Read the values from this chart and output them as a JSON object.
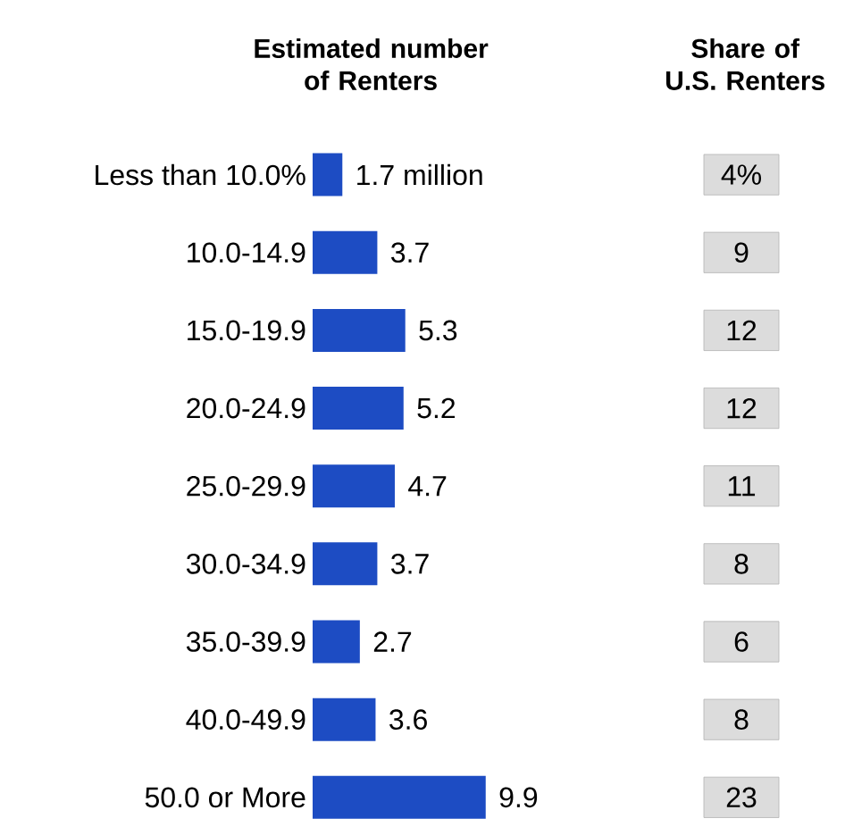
{
  "chart_data": [
    {
      "type": "bar",
      "orientation": "horizontal",
      "title": "Estimated number of Renters",
      "categories": [
        "Less than 10.0%",
        "10.0-14.9",
        "15.0-19.9",
        "20.0-24.9",
        "25.0-29.9",
        "30.0-34.9",
        "35.0-39.9",
        "40.0-49.9",
        "50.0 or More"
      ],
      "values": [
        1.7,
        3.7,
        5.3,
        5.2,
        4.7,
        3.7,
        2.7,
        3.6,
        9.9
      ],
      "value_labels": [
        "1.7 million",
        "3.7",
        "5.3",
        "5.2",
        "4.7",
        "3.7",
        "2.7",
        "3.6",
        "9.9"
      ],
      "color": "#1d4cc3"
    },
    {
      "type": "other",
      "title": "Share of U.S. Renters",
      "values": [
        4,
        9,
        12,
        12,
        11,
        8,
        6,
        8,
        23
      ],
      "value_labels": [
        "4%",
        "9",
        "12",
        "12",
        "11",
        "8",
        "6",
        "8",
        "23"
      ],
      "color": "#dcdcdc"
    }
  ]
}
